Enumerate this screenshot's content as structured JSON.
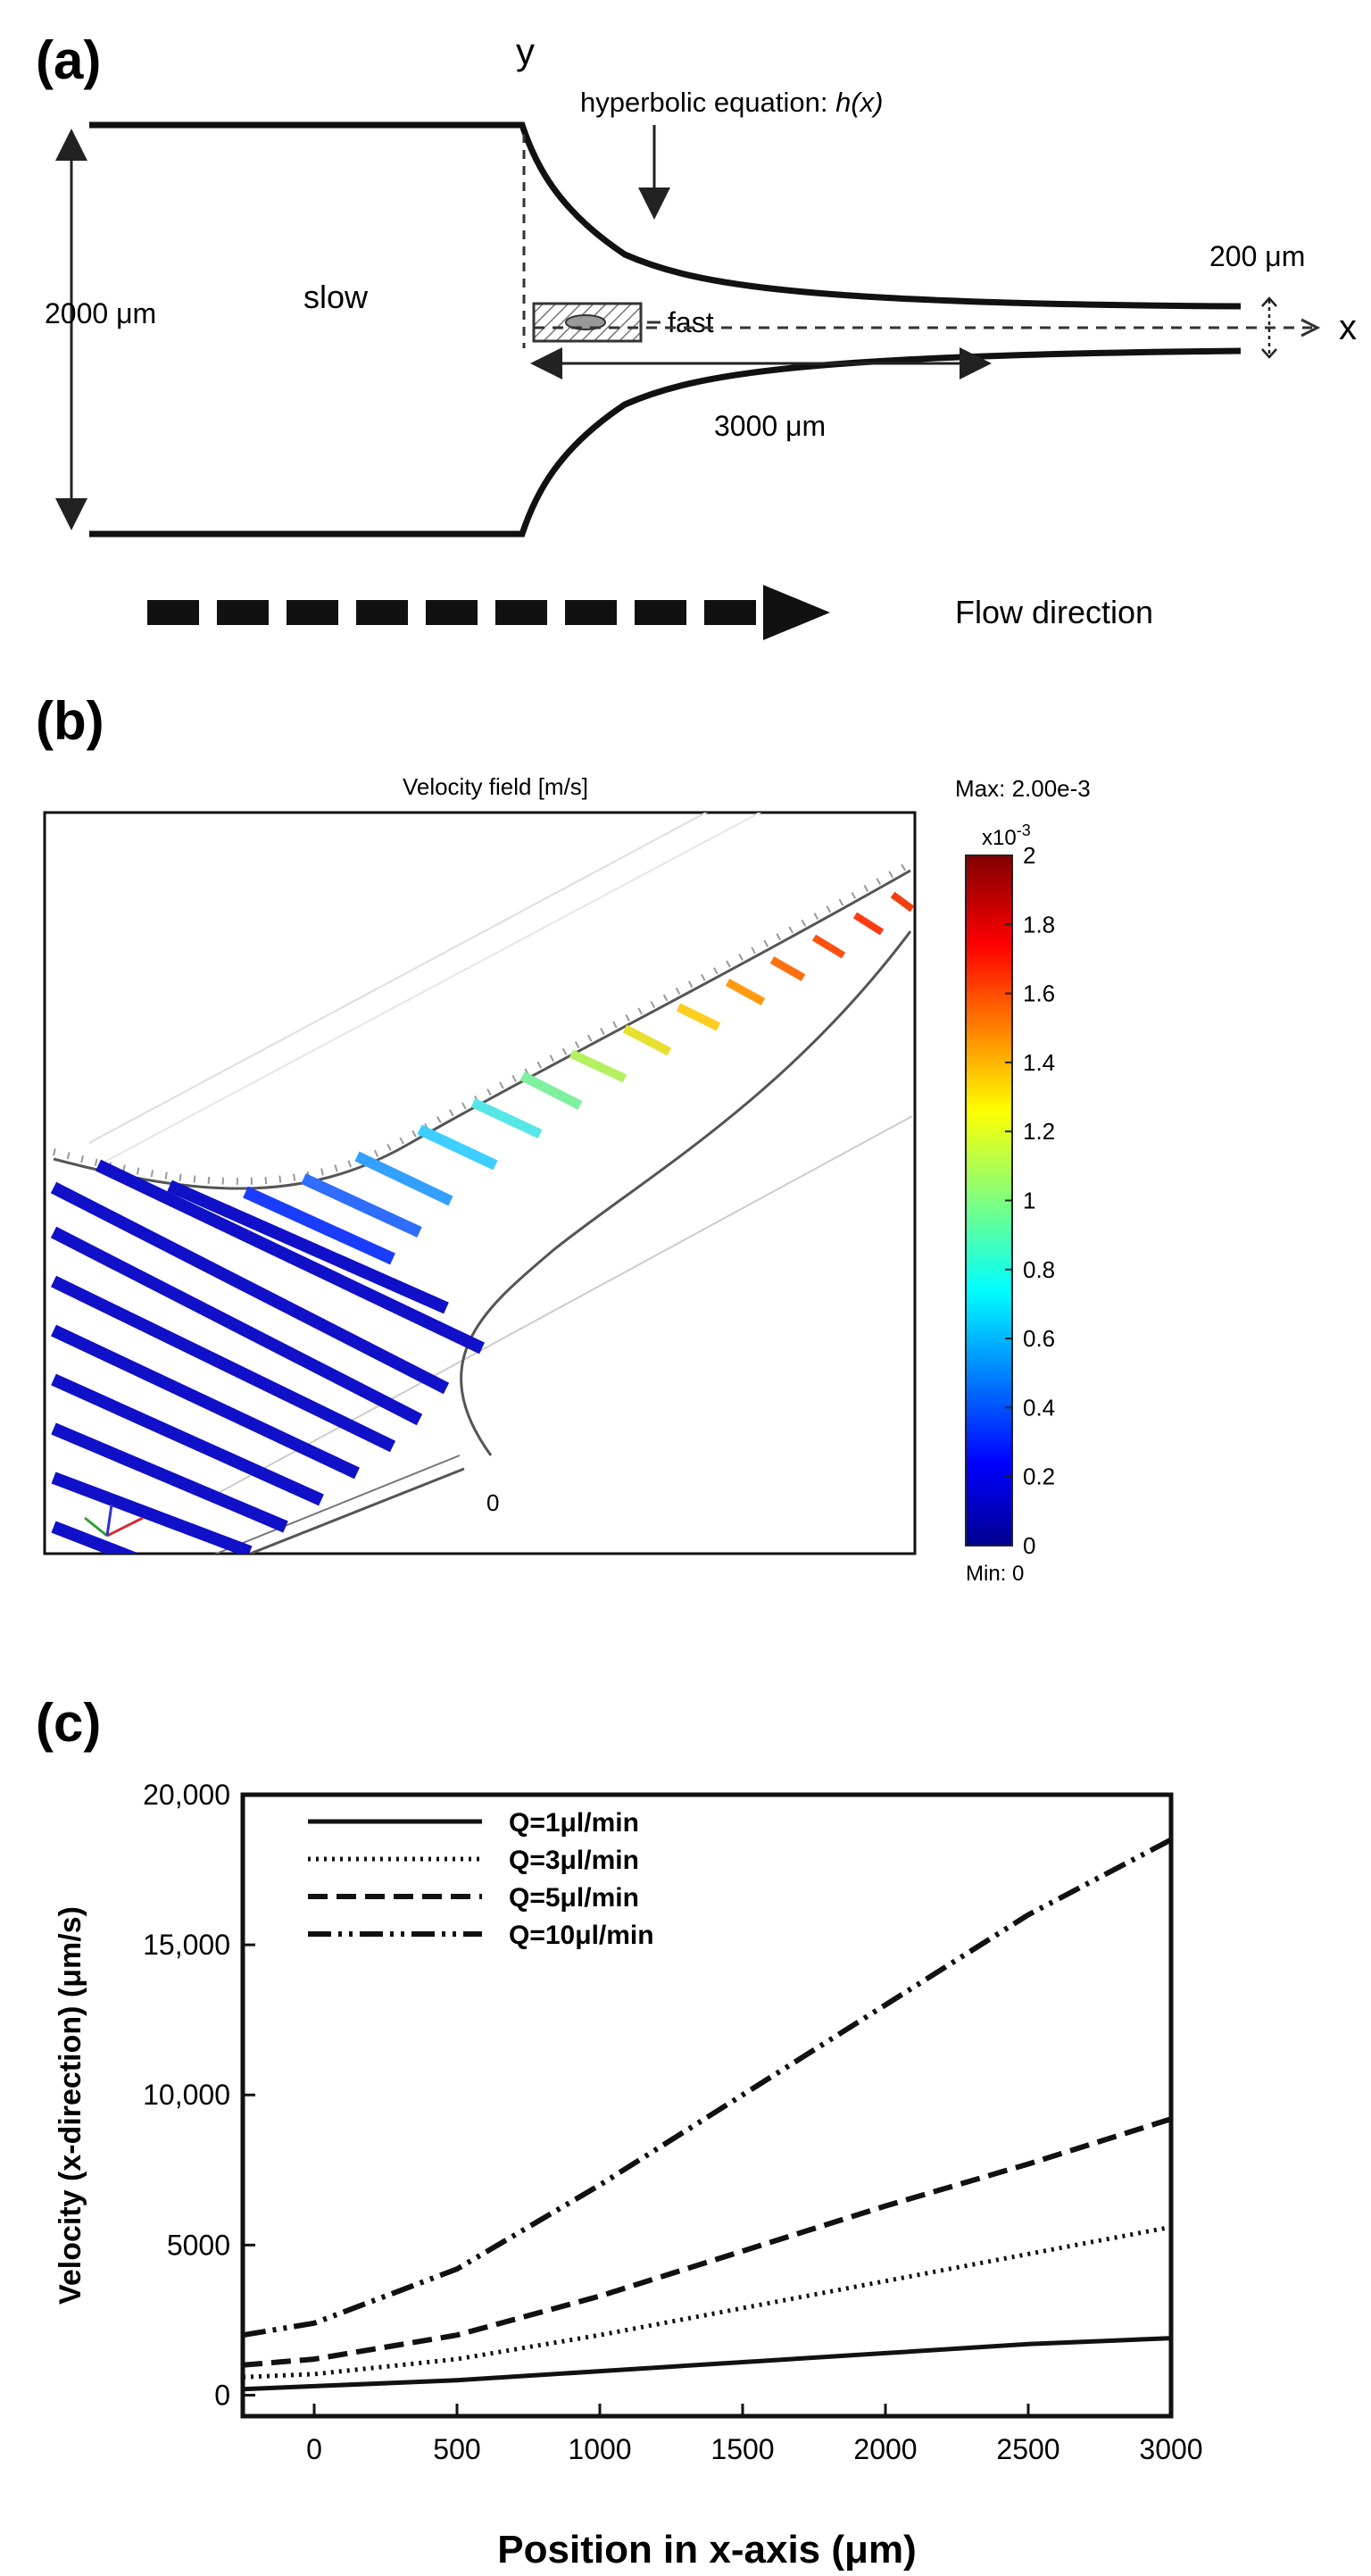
{
  "panel_a": {
    "label": "(a)",
    "y_axis": "y",
    "x_axis": "x",
    "hyperbolic": "hyperbolic equation: ",
    "hyperbolic_fn": "h(x)",
    "width_out": "200 μm",
    "width_in": "2000 μm",
    "slow": "slow",
    "fast": "fast",
    "length": "3000 μm",
    "flow": "Flow direction"
  },
  "panel_b": {
    "label": "(b)",
    "title": "Velocity field [m/s]",
    "max": "Max: 2.00e-3",
    "min": "Min: 0",
    "exponent": "x10",
    "exponent_power": "-3",
    "origin": "0",
    "colorbar_ticks": [
      "2",
      "1.8",
      "1.6",
      "1.4",
      "1.2",
      "1",
      "0.8",
      "0.6",
      "0.4",
      "0.2",
      "0"
    ]
  },
  "panel_c": {
    "label": "(c)"
  },
  "chart_data": {
    "type": "line",
    "xlabel": "Position in x-axis (μm)",
    "ylabel": "Velocity (x-direction) (μm/s)",
    "xlim": [
      -250,
      3000
    ],
    "ylim": [
      -700,
      20000
    ],
    "x_ticks": [
      "0",
      "500",
      "1000",
      "1500",
      "2000",
      "2500",
      "3000"
    ],
    "y_ticks": [
      "0",
      "5000",
      "10,000",
      "15,000",
      "20,000"
    ],
    "legend_position": "top-left",
    "x": [
      -250,
      0,
      500,
      1000,
      1500,
      2000,
      2500,
      3000
    ],
    "series": [
      {
        "name": "Q=1μl/min",
        "values": [
          200,
          300,
          500,
          800,
          1100,
          1400,
          1700,
          1900
        ]
      },
      {
        "name": "Q=3μl/min",
        "values": [
          600,
          700,
          1200,
          2000,
          2900,
          3800,
          4700,
          5600
        ]
      },
      {
        "name": "Q=5μl/min",
        "values": [
          1000,
          1200,
          2000,
          3300,
          4800,
          6300,
          7700,
          9200
        ]
      },
      {
        "name": "Q=10μl/min",
        "values": [
          2000,
          2400,
          4200,
          7000,
          10000,
          13000,
          16000,
          18500
        ]
      }
    ]
  }
}
